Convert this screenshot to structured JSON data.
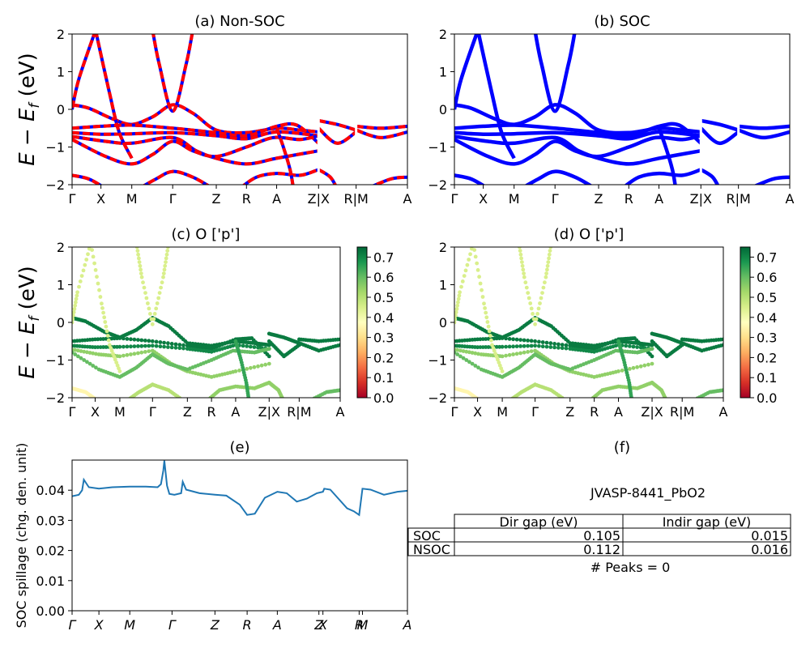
{
  "chart_data": [
    {
      "id": "a",
      "type": "line",
      "title": "(a) Non-SOC",
      "ylabel": "E − E_f (eV)",
      "ylim": [
        -2,
        2
      ],
      "yticks": [
        "−2",
        "−1",
        "0",
        "1",
        "2"
      ],
      "kpath_labels": [
        "Γ",
        "X",
        "M",
        "Γ",
        "Z",
        "R",
        "A",
        "Z|X",
        "R|M",
        "A"
      ],
      "kpath_pos": [
        0,
        0.086,
        0.178,
        0.3,
        0.43,
        0.52,
        0.61,
        0.735,
        0.847,
        1.0
      ],
      "segment_breaks": [
        0.735,
        0.847
      ],
      "series": [
        {
          "color": "#ff0000",
          "dash_color": "#0000ff",
          "bands": [
            [
              [
                0,
                0.12
              ],
              [
                0.05,
                0.03
              ],
              [
                0.12,
                -0.25
              ],
              [
                0.178,
                -0.4
              ],
              [
                0.24,
                -0.2
              ],
              [
                0.3,
                0.12
              ],
              [
                0.36,
                -0.1
              ],
              [
                0.43,
                -0.55
              ],
              [
                0.52,
                -0.62
              ],
              [
                0.61,
                -0.5
              ],
              [
                0.68,
                -0.55
              ],
              [
                0.735,
                -0.6
              ]
            ],
            [
              [
                0,
                -0.5
              ],
              [
                0.086,
                -0.45
              ],
              [
                0.178,
                -0.42
              ],
              [
                0.3,
                -0.5
              ],
              [
                0.43,
                -0.62
              ],
              [
                0.52,
                -0.7
              ],
              [
                0.61,
                -0.45
              ],
              [
                0.67,
                -0.42
              ],
              [
                0.735,
                -0.9
              ]
            ],
            [
              [
                0,
                -0.62
              ],
              [
                0.086,
                -0.66
              ],
              [
                0.178,
                -0.65
              ],
              [
                0.3,
                -0.62
              ],
              [
                0.43,
                -0.7
              ],
              [
                0.52,
                -0.78
              ],
              [
                0.61,
                -0.6
              ],
              [
                0.735,
                -0.7
              ]
            ],
            [
              [
                0,
                -0.72
              ],
              [
                0.1,
                -0.85
              ],
              [
                0.178,
                -0.9
              ],
              [
                0.3,
                -0.75
              ],
              [
                0.37,
                -1.1
              ],
              [
                0.43,
                -1.3
              ],
              [
                0.52,
                -1.45
              ],
              [
                0.61,
                -1.3
              ],
              [
                0.735,
                -1.1
              ]
            ],
            [
              [
                0,
                -0.8
              ],
              [
                0.1,
                -1.25
              ],
              [
                0.178,
                -1.45
              ],
              [
                0.24,
                -1.2
              ],
              [
                0.3,
                -0.85
              ],
              [
                0.36,
                -1.1
              ],
              [
                0.43,
                -1.25
              ],
              [
                0.52,
                -1.0
              ],
              [
                0.6,
                -0.75
              ],
              [
                0.68,
                -0.8
              ],
              [
                0.735,
                -0.7
              ]
            ],
            [
              [
                0,
                -1.75
              ],
              [
                0.05,
                -1.85
              ],
              [
                0.1,
                -2.1
              ]
            ],
            [
              [
                0.2,
                -2.1
              ],
              [
                0.25,
                -1.85
              ],
              [
                0.3,
                -1.65
              ],
              [
                0.36,
                -1.8
              ],
              [
                0.42,
                -2.1
              ]
            ],
            [
              [
                0.5,
                -2.1
              ],
              [
                0.55,
                -1.8
              ],
              [
                0.61,
                -1.7
              ],
              [
                0.68,
                -1.75
              ],
              [
                0.735,
                -1.6
              ]
            ],
            [
              [
                0.61,
                -0.5
              ],
              [
                0.63,
                -1.0
              ],
              [
                0.65,
                -1.6
              ],
              [
                0.66,
                -2.1
              ]
            ],
            [
              [
                0.07,
                2.1
              ],
              [
                0.02,
                0.8
              ],
              [
                0.0,
                0.0
              ]
            ],
            [
              [
                0.07,
                2.1
              ],
              [
                0.11,
                0.5
              ],
              [
                0.14,
                -0.6
              ],
              [
                0.178,
                -1.3
              ]
            ],
            [
              [
                0.24,
                2.1
              ],
              [
                0.26,
                1.2
              ],
              [
                0.3,
                -0.05
              ],
              [
                0.34,
                1.2
              ],
              [
                0.36,
                2.1
              ]
            ],
            [
              [
                0.735,
                -0.3
              ],
              [
                0.79,
                -0.4
              ],
              [
                0.847,
                -0.55
              ]
            ],
            [
              [
                0.735,
                -0.5
              ],
              [
                0.79,
                -0.9
              ],
              [
                0.847,
                -0.6
              ]
            ],
            [
              [
                0.735,
                -1.6
              ],
              [
                0.77,
                -1.8
              ],
              [
                0.79,
                -2.1
              ]
            ],
            [
              [
                0.847,
                -0.45
              ],
              [
                0.92,
                -0.5
              ],
              [
                1.0,
                -0.45
              ]
            ],
            [
              [
                0.847,
                -0.55
              ],
              [
                0.92,
                -0.75
              ],
              [
                1.0,
                -0.6
              ]
            ],
            [
              [
                0.88,
                -2.1
              ],
              [
                0.95,
                -1.85
              ],
              [
                1.0,
                -1.8
              ]
            ]
          ]
        }
      ]
    },
    {
      "id": "b",
      "type": "line",
      "title": "(b) SOC",
      "ylim": [
        -2,
        2
      ],
      "yticks": [
        "−2",
        "−1",
        "0",
        "1",
        "2"
      ],
      "kpath_labels": [
        "Γ",
        "X",
        "M",
        "Γ",
        "Z",
        "R",
        "A",
        "Z|X",
        "R|M",
        "A"
      ],
      "kpath_pos": [
        0,
        0.086,
        0.178,
        0.3,
        0.43,
        0.52,
        0.61,
        0.735,
        0.847,
        1.0
      ],
      "segment_breaks": [
        0.735,
        0.847
      ],
      "series": [
        {
          "color": "#0000ff",
          "bands_from": "a"
        }
      ]
    },
    {
      "id": "c",
      "type": "scatter",
      "title": "(c)  O ['p']",
      "ylabel": "E − E_f (eV)",
      "ylim": [
        -2,
        2
      ],
      "yticks": [
        "−2",
        "−1",
        "0",
        "1",
        "2"
      ],
      "kpath_labels": [
        "Γ",
        "X",
        "M",
        "Γ",
        "Z",
        "R",
        "A",
        "Z|X",
        "R|M",
        "A"
      ],
      "kpath_pos": [
        0,
        0.086,
        0.178,
        0.3,
        0.43,
        0.52,
        0.61,
        0.735,
        0.847,
        1.0
      ],
      "colorbar": {
        "min": 0.0,
        "max": 0.75,
        "ticks": [
          "0.0",
          "0.1",
          "0.2",
          "0.3",
          "0.4",
          "0.5",
          "0.6",
          "0.7"
        ],
        "colormap": "RdYlGn"
      },
      "weights": [
        0.72,
        0.72,
        0.7,
        0.55,
        0.6,
        0.35,
        0.5,
        0.55,
        0.65,
        0.45,
        0.45,
        0.45,
        0.72,
        0.72,
        0.55,
        0.72,
        0.72,
        0.6
      ]
    },
    {
      "id": "d",
      "type": "scatter",
      "title": "(d) O ['p']",
      "ylim": [
        -2,
        2
      ],
      "yticks": [
        "−2",
        "−1",
        "0",
        "1",
        "2"
      ],
      "kpath_labels": [
        "Γ",
        "X",
        "M",
        "Γ",
        "Z",
        "R",
        "A",
        "Z|X",
        "R|M",
        "A"
      ],
      "kpath_pos": [
        0,
        0.086,
        0.178,
        0.3,
        0.43,
        0.52,
        0.61,
        0.735,
        0.847,
        1.0
      ],
      "colorbar": {
        "min": 0.0,
        "max": 0.75,
        "ticks": [
          "0.0",
          "0.1",
          "0.2",
          "0.3",
          "0.4",
          "0.5",
          "0.6",
          "0.7"
        ],
        "colormap": "RdYlGn"
      }
    },
    {
      "id": "e",
      "type": "line",
      "title": "(e)",
      "ylabel": "SOC spillage (chg. den. unit)",
      "ylim": [
        0,
        0.05
      ],
      "yticks": [
        "0.00",
        "0.01",
        "0.02",
        "0.03",
        "0.04"
      ],
      "ytick_values": [
        0,
        0.01,
        0.02,
        0.03,
        0.04
      ],
      "kpath_labels": [
        "Γ",
        "X",
        "M",
        "Γ",
        "Z",
        "R",
        "A",
        "Z",
        "X",
        "R",
        "M",
        "A"
      ],
      "kpath_pos": [
        0,
        0.08,
        0.172,
        0.298,
        0.426,
        0.522,
        0.612,
        0.736,
        0.748,
        0.856,
        0.866,
        1.0
      ],
      "series": [
        {
          "color": "#1f77b4",
          "points": [
            [
              0,
              0.038
            ],
            [
              0.02,
              0.0385
            ],
            [
              0.03,
              0.04
            ],
            [
              0.035,
              0.0435
            ],
            [
              0.05,
              0.041
            ],
            [
              0.08,
              0.0405
            ],
            [
              0.12,
              0.041
            ],
            [
              0.172,
              0.0412
            ],
            [
              0.22,
              0.0412
            ],
            [
              0.255,
              0.041
            ],
            [
              0.265,
              0.042
            ],
            [
              0.272,
              0.0465
            ],
            [
              0.275,
              0.0498
            ],
            [
              0.283,
              0.0415
            ],
            [
              0.29,
              0.0388
            ],
            [
              0.305,
              0.0385
            ],
            [
              0.325,
              0.039
            ],
            [
              0.33,
              0.0428
            ],
            [
              0.34,
              0.0402
            ],
            [
              0.38,
              0.039
            ],
            [
              0.426,
              0.0385
            ],
            [
              0.46,
              0.0382
            ],
            [
              0.5,
              0.0352
            ],
            [
              0.522,
              0.0318
            ],
            [
              0.545,
              0.0322
            ],
            [
              0.575,
              0.0375
            ],
            [
              0.612,
              0.0395
            ],
            [
              0.64,
              0.039
            ],
            [
              0.67,
              0.0362
            ],
            [
              0.7,
              0.0372
            ],
            [
              0.73,
              0.039
            ],
            [
              0.748,
              0.0395
            ],
            [
              0.752,
              0.0405
            ],
            [
              0.77,
              0.0402
            ],
            [
              0.82,
              0.034
            ],
            [
              0.84,
              0.033
            ],
            [
              0.856,
              0.0318
            ],
            [
              0.866,
              0.0405
            ],
            [
              0.89,
              0.0402
            ],
            [
              0.93,
              0.0385
            ],
            [
              0.97,
              0.0395
            ],
            [
              1.0,
              0.0398
            ]
          ]
        }
      ]
    },
    {
      "id": "f",
      "type": "table",
      "title": "(f)",
      "subtitle": "JVASP-8441_PbO2",
      "columns": [
        "",
        "Dir gap (eV)",
        "Indir gap (eV)"
      ],
      "rows": [
        [
          "SOC",
          "0.105",
          "0.015"
        ],
        [
          "NSOC",
          "0.112",
          "0.016"
        ]
      ],
      "footer": "# Peaks = 0"
    }
  ]
}
